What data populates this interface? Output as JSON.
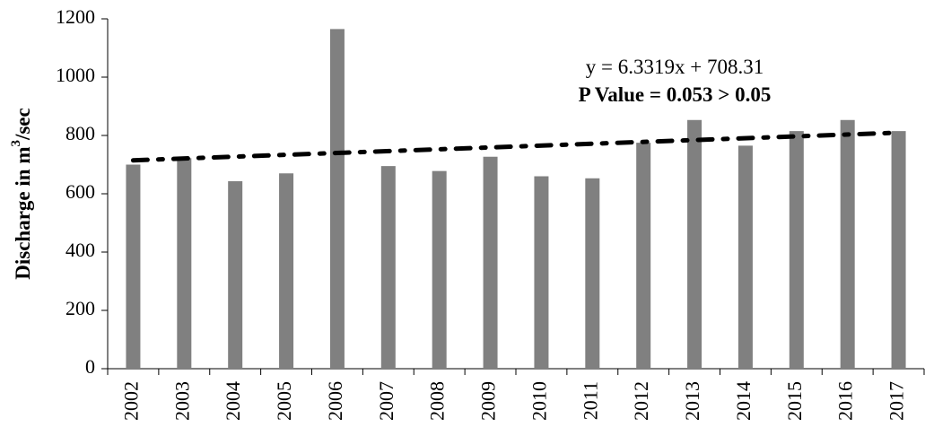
{
  "chart_data": {
    "type": "bar",
    "categories": [
      "2002",
      "2003",
      "2004",
      "2005",
      "2006",
      "2007",
      "2008",
      "2009",
      "2010",
      "2011",
      "2012",
      "2013",
      "2014",
      "2015",
      "2016",
      "2017"
    ],
    "series": [
      {
        "values": [
          700,
          722,
          643,
          670,
          1165,
          695,
          678,
          727,
          660,
          653,
          775,
          853,
          765,
          815,
          853,
          815
        ]
      }
    ],
    "trendline": {
      "slope": 6.3319,
      "intercept": 708.31,
      "style": "dash-dot",
      "color": "#000000"
    },
    "ylabel": "Discharge in m³/sec",
    "ylabel_parts": {
      "main": "Discharge in m",
      "sup": "3",
      "tail": "/sec"
    },
    "xlabel": "",
    "ylim": [
      0,
      1200
    ],
    "yticks": [
      0,
      200,
      400,
      600,
      800,
      1000,
      1200
    ],
    "annotations": {
      "equation": "y = 6.3319x + 708.31",
      "p_value": "P Value = 0.053 > 0.05"
    },
    "grid": false,
    "legend": "none",
    "bar_color": "#808080"
  }
}
